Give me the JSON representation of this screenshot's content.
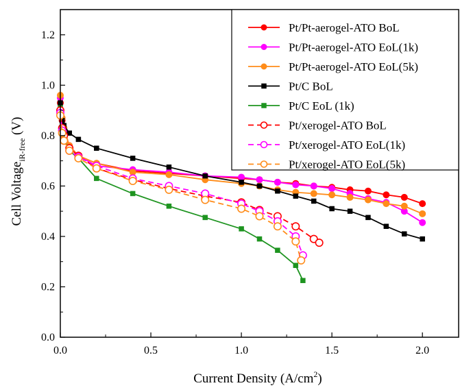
{
  "chart_data": {
    "type": "line",
    "title": "",
    "xlabel": "Current Density (A/cm",
    "xlabel_sup": "2",
    "xlabel_end": ")",
    "ylabel": "Cell Voltage",
    "ylabel_sub": "iR-free",
    "ylabel_end": " (V)",
    "xlim": [
      0,
      2.2
    ],
    "ylim": [
      0,
      1.3
    ],
    "xticks": [
      0.0,
      0.5,
      1.0,
      1.5,
      2.0
    ],
    "xtick_labels": [
      "0.0",
      "0.5",
      "1.0",
      "1.5",
      "2.0"
    ],
    "yticks": [
      0.0,
      0.2,
      0.4,
      0.6,
      0.8,
      1.0,
      1.2
    ],
    "ytick_labels": [
      "0.0",
      "0.2",
      "0.4",
      "0.6",
      "0.8",
      "1.0",
      "1.2"
    ],
    "grid": false,
    "legend_position": "top-right",
    "series": [
      {
        "name": "Pt/Pt-aerogel-ATO BoL",
        "color": "#ff0000",
        "marker": "circle-filled",
        "dash": "solid",
        "x": [
          0.0,
          0.01,
          0.02,
          0.05,
          0.1,
          0.2,
          0.4,
          0.6,
          0.8,
          1.0,
          1.1,
          1.2,
          1.3,
          1.4,
          1.5,
          1.6,
          1.7,
          1.8,
          1.9,
          2.0
        ],
        "y": [
          0.93,
          0.86,
          0.82,
          0.76,
          0.72,
          0.69,
          0.66,
          0.65,
          0.64,
          0.63,
          0.625,
          0.615,
          0.61,
          0.6,
          0.595,
          0.585,
          0.58,
          0.565,
          0.555,
          0.53
        ]
      },
      {
        "name": "Pt/Pt-aerogel-ATO EoL(1k)",
        "color": "#ff00ff",
        "marker": "circle-filled",
        "dash": "solid",
        "x": [
          0.0,
          0.01,
          0.02,
          0.05,
          0.1,
          0.2,
          0.4,
          0.6,
          0.8,
          1.0,
          1.1,
          1.2,
          1.3,
          1.4,
          1.5,
          1.6,
          1.7,
          1.8,
          1.9,
          2.0
        ],
        "y": [
          0.95,
          0.87,
          0.82,
          0.76,
          0.72,
          0.68,
          0.665,
          0.655,
          0.64,
          0.635,
          0.625,
          0.615,
          0.605,
          0.6,
          0.59,
          0.57,
          0.55,
          0.535,
          0.5,
          0.455
        ]
      },
      {
        "name": "Pt/Pt-aerogel-ATO EoL(5k)",
        "color": "#ff8c1a",
        "marker": "circle-filled",
        "dash": "solid",
        "x": [
          0.0,
          0.01,
          0.02,
          0.05,
          0.1,
          0.2,
          0.4,
          0.6,
          0.8,
          1.0,
          1.1,
          1.2,
          1.3,
          1.4,
          1.5,
          1.6,
          1.7,
          1.8,
          1.9,
          2.0
        ],
        "y": [
          0.96,
          0.87,
          0.83,
          0.76,
          0.72,
          0.69,
          0.655,
          0.645,
          0.625,
          0.61,
          0.6,
          0.585,
          0.575,
          0.57,
          0.565,
          0.555,
          0.545,
          0.53,
          0.52,
          0.49
        ]
      },
      {
        "name": "Pt/C BoL",
        "color": "#000000",
        "marker": "square-filled",
        "dash": "solid",
        "x": [
          0.0,
          0.01,
          0.02,
          0.05,
          0.1,
          0.2,
          0.4,
          0.6,
          0.8,
          1.0,
          1.1,
          1.2,
          1.3,
          1.4,
          1.5,
          1.6,
          1.7,
          1.8,
          1.9,
          2.0
        ],
        "y": [
          0.93,
          0.86,
          0.84,
          0.81,
          0.785,
          0.75,
          0.71,
          0.675,
          0.64,
          0.615,
          0.6,
          0.58,
          0.56,
          0.54,
          0.51,
          0.5,
          0.475,
          0.44,
          0.41,
          0.39
        ]
      },
      {
        "name": "Pt/C EoL (1k)",
        "color": "#1e9420",
        "marker": "square-filled",
        "dash": "solid",
        "x": [
          0.0,
          0.01,
          0.02,
          0.05,
          0.1,
          0.2,
          0.4,
          0.6,
          0.8,
          1.0,
          1.1,
          1.2,
          1.3,
          1.34
        ],
        "y": [
          0.91,
          0.82,
          0.79,
          0.74,
          0.71,
          0.63,
          0.57,
          0.52,
          0.475,
          0.43,
          0.39,
          0.345,
          0.285,
          0.225
        ]
      },
      {
        "name": "Pt/xerogel-ATO BoL",
        "color": "#ff0000",
        "marker": "circle-open",
        "dash": "dashed",
        "x": [
          0.0,
          0.01,
          0.02,
          0.05,
          0.1,
          0.2,
          0.4,
          0.6,
          0.8,
          1.0,
          1.1,
          1.2,
          1.3,
          1.4,
          1.43
        ],
        "y": [
          0.9,
          0.83,
          0.8,
          0.75,
          0.72,
          0.67,
          0.625,
          0.59,
          0.56,
          0.535,
          0.505,
          0.48,
          0.44,
          0.39,
          0.375
        ]
      },
      {
        "name": "Pt/xerogel-ATO EoL(1k)",
        "color": "#ff00ff",
        "marker": "circle-open",
        "dash": "dashed",
        "x": [
          0.0,
          0.01,
          0.02,
          0.05,
          0.1,
          0.2,
          0.4,
          0.6,
          0.8,
          1.0,
          1.1,
          1.2,
          1.3,
          1.34
        ],
        "y": [
          0.89,
          0.82,
          0.78,
          0.74,
          0.715,
          0.68,
          0.63,
          0.6,
          0.57,
          0.53,
          0.5,
          0.46,
          0.4,
          0.325
        ]
      },
      {
        "name": "Pt/xerogel-ATO EoL(5k)",
        "color": "#ff8c1a",
        "marker": "circle-open",
        "dash": "dashed",
        "x": [
          0.0,
          0.01,
          0.02,
          0.05,
          0.1,
          0.2,
          0.4,
          0.6,
          0.8,
          1.0,
          1.1,
          1.2,
          1.3,
          1.33
        ],
        "y": [
          0.88,
          0.81,
          0.78,
          0.74,
          0.71,
          0.67,
          0.62,
          0.585,
          0.545,
          0.51,
          0.48,
          0.44,
          0.38,
          0.305
        ]
      }
    ]
  }
}
